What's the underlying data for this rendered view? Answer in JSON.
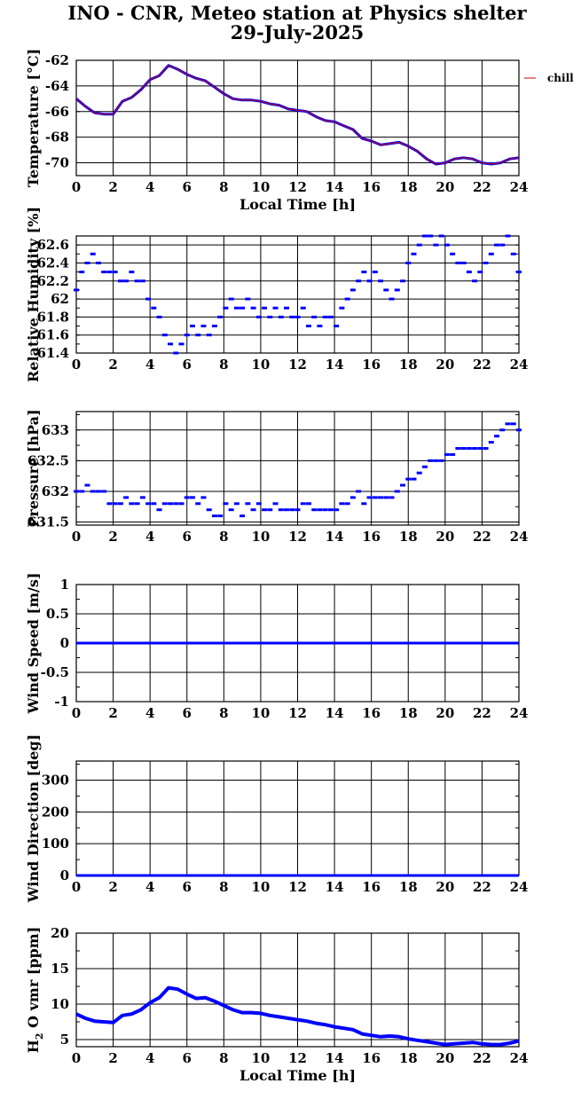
{
  "title": {
    "line1": "INO - CNR, Meteo station at Physics shelter",
    "line2": "29-July-2025"
  },
  "colors": {
    "series": "#0000ff",
    "temperature_overlay": "#cc0000",
    "grid": "#000000"
  },
  "chart_data": [
    {
      "type": "line",
      "ylabel": "Temperature [°C]",
      "xlabel": "Local Time [h]",
      "xlim": [
        0,
        24
      ],
      "ylim": [
        -71,
        -62
      ],
      "xticks": [
        "0",
        "2",
        "4",
        "6",
        "8",
        "10",
        "12",
        "14",
        "16",
        "18",
        "20",
        "22",
        "24"
      ],
      "yticks": [
        "-62",
        "-64",
        "-66",
        "-68",
        "-70"
      ],
      "legend": "chill",
      "series": [
        {
          "x": [
            0,
            0.5,
            1,
            1.5,
            2,
            2.5,
            3,
            3.5,
            4,
            4.5,
            5,
            5.5,
            6,
            6.5,
            7,
            7.5,
            8,
            8.5,
            9,
            9.5,
            10,
            10.5,
            11,
            11.5,
            12,
            12.5,
            13,
            13.5,
            14,
            14.5,
            15,
            15.5,
            16,
            16.5,
            17,
            17.5,
            18,
            18.5,
            19,
            19.5,
            20,
            20.5,
            21,
            21.5,
            22,
            22.5,
            23,
            23.5,
            24
          ],
          "y": [
            -65.0,
            -65.6,
            -66.1,
            -66.2,
            -66.2,
            -65.2,
            -64.9,
            -64.3,
            -63.5,
            -63.2,
            -62.4,
            -62.7,
            -63.1,
            -63.4,
            -63.6,
            -64.1,
            -64.6,
            -65.0,
            -65.1,
            -65.1,
            -65.2,
            -65.4,
            -65.5,
            -65.8,
            -65.9,
            -66.0,
            -66.4,
            -66.7,
            -66.8,
            -67.1,
            -67.4,
            -68.1,
            -68.3,
            -68.6,
            -68.5,
            -68.4,
            -68.7,
            -69.1,
            -69.7,
            -70.1,
            -70.0,
            -69.7,
            -69.6,
            -69.7,
            -70.0,
            -70.1,
            -70.0,
            -69.7,
            -69.6
          ]
        }
      ]
    },
    {
      "type": "scatter",
      "ylabel": "Relative Humidity [%]",
      "xlim": [
        0,
        24
      ],
      "ylim": [
        61.4,
        62.7
      ],
      "xticks": [
        "0",
        "2",
        "4",
        "6",
        "8",
        "10",
        "12",
        "14",
        "16",
        "18",
        "20",
        "22",
        "24"
      ],
      "yticks": [
        "61.4",
        "61.6",
        "61.8",
        "62",
        "62.2",
        "62.4",
        "62.6"
      ],
      "series": [
        {
          "x": [
            0,
            0.3,
            0.6,
            0.9,
            1.2,
            1.5,
            1.8,
            2.1,
            2.4,
            2.7,
            3.0,
            3.3,
            3.6,
            3.9,
            4.2,
            4.5,
            4.8,
            5.1,
            5.4,
            5.7,
            6.0,
            6.3,
            6.6,
            6.9,
            7.2,
            7.5,
            7.8,
            8.1,
            8.4,
            8.7,
            9.0,
            9.3,
            9.6,
            9.9,
            10.2,
            10.5,
            10.8,
            11.1,
            11.4,
            11.7,
            12.0,
            12.3,
            12.6,
            12.9,
            13.2,
            13.5,
            13.8,
            14.1,
            14.4,
            14.7,
            15.0,
            15.3,
            15.6,
            15.9,
            16.2,
            16.5,
            16.8,
            17.1,
            17.4,
            17.7,
            18.0,
            18.3,
            18.6,
            18.9,
            19.2,
            19.5,
            19.8,
            20.1,
            20.4,
            20.7,
            21.0,
            21.3,
            21.6,
            21.9,
            22.2,
            22.5,
            22.8,
            23.1,
            23.4,
            23.7,
            24.0
          ],
          "y": [
            62.1,
            62.3,
            62.4,
            62.5,
            62.4,
            62.3,
            62.3,
            62.3,
            62.2,
            62.2,
            62.3,
            62.2,
            62.2,
            62.0,
            61.9,
            61.8,
            61.6,
            61.5,
            61.4,
            61.5,
            61.6,
            61.7,
            61.6,
            61.7,
            61.6,
            61.7,
            61.8,
            61.9,
            62.0,
            61.9,
            61.9,
            62.0,
            61.9,
            61.8,
            61.9,
            61.8,
            61.9,
            61.8,
            61.9,
            61.8,
            61.8,
            61.9,
            61.7,
            61.8,
            61.7,
            61.8,
            61.8,
            61.7,
            61.9,
            62.0,
            62.1,
            62.2,
            62.3,
            62.2,
            62.3,
            62.2,
            62.1,
            62.0,
            62.1,
            62.2,
            62.4,
            62.5,
            62.6,
            62.7,
            62.7,
            62.6,
            62.7,
            62.6,
            62.5,
            62.4,
            62.4,
            62.3,
            62.2,
            62.3,
            62.4,
            62.5,
            62.6,
            62.6,
            62.7,
            62.5,
            62.3
          ]
        }
      ]
    },
    {
      "type": "scatter",
      "ylabel": "Pressure [hPa]",
      "xlim": [
        0,
        24
      ],
      "ylim": [
        631.45,
        633.3
      ],
      "xticks": [
        "0",
        "2",
        "4",
        "6",
        "8",
        "10",
        "12",
        "14",
        "16",
        "18",
        "20",
        "22",
        "24"
      ],
      "yticks": [
        "631.5",
        "632",
        "632.5",
        "633"
      ],
      "series": [
        {
          "x": [
            0,
            0.3,
            0.6,
            0.9,
            1.2,
            1.5,
            1.8,
            2.1,
            2.4,
            2.7,
            3.0,
            3.3,
            3.6,
            3.9,
            4.2,
            4.5,
            4.8,
            5.1,
            5.4,
            5.7,
            6.0,
            6.3,
            6.6,
            6.9,
            7.2,
            7.5,
            7.8,
            8.1,
            8.4,
            8.7,
            9.0,
            9.3,
            9.6,
            9.9,
            10.2,
            10.5,
            10.8,
            11.1,
            11.4,
            11.7,
            12.0,
            12.3,
            12.6,
            12.9,
            13.2,
            13.5,
            13.8,
            14.1,
            14.4,
            14.7,
            15.0,
            15.3,
            15.6,
            15.9,
            16.2,
            16.5,
            16.8,
            17.1,
            17.4,
            17.7,
            18.0,
            18.3,
            18.6,
            18.9,
            19.2,
            19.5,
            19.8,
            20.1,
            20.4,
            20.7,
            21.0,
            21.3,
            21.6,
            21.9,
            22.2,
            22.5,
            22.8,
            23.1,
            23.4,
            23.7,
            24.0
          ],
          "y": [
            632.0,
            632.0,
            632.1,
            632.0,
            632.0,
            632.0,
            631.8,
            631.8,
            631.8,
            631.9,
            631.8,
            631.8,
            631.9,
            631.8,
            631.8,
            631.7,
            631.8,
            631.8,
            631.8,
            631.8,
            631.9,
            631.9,
            631.8,
            631.9,
            631.7,
            631.6,
            631.6,
            631.8,
            631.7,
            631.8,
            631.6,
            631.8,
            631.7,
            631.8,
            631.7,
            631.7,
            631.8,
            631.7,
            631.7,
            631.7,
            631.7,
            631.8,
            631.8,
            631.7,
            631.7,
            631.7,
            631.7,
            631.7,
            631.8,
            631.8,
            631.9,
            632.0,
            631.8,
            631.9,
            631.9,
            631.9,
            631.9,
            631.9,
            632.0,
            632.1,
            632.2,
            632.2,
            632.3,
            632.4,
            632.5,
            632.5,
            632.5,
            632.6,
            632.6,
            632.7,
            632.7,
            632.7,
            632.7,
            632.7,
            632.7,
            632.8,
            632.9,
            633.0,
            633.1,
            633.1,
            633.0
          ]
        }
      ]
    },
    {
      "type": "line",
      "ylabel": "Wind Speed [m/s]",
      "xlim": [
        0,
        24
      ],
      "ylim": [
        -1,
        1
      ],
      "xticks": [
        "0",
        "2",
        "4",
        "6",
        "8",
        "10",
        "12",
        "14",
        "16",
        "18",
        "20",
        "22",
        "24"
      ],
      "yticks": [
        "-1",
        "-0.5",
        "0",
        "0.5",
        "1"
      ],
      "series": [
        {
          "x": [
            0,
            24
          ],
          "y": [
            0,
            0
          ]
        }
      ]
    },
    {
      "type": "line",
      "ylabel": "Wind Direction [deg]",
      "xlim": [
        0,
        24
      ],
      "ylim": [
        0,
        360
      ],
      "xticks": [
        "0",
        "2",
        "4",
        "6",
        "8",
        "10",
        "12",
        "14",
        "16",
        "18",
        "20",
        "22",
        "24"
      ],
      "yticks": [
        "0",
        "100",
        "200",
        "300"
      ],
      "series": [
        {
          "x": [
            0,
            24
          ],
          "y": [
            0,
            0
          ]
        }
      ]
    },
    {
      "type": "line",
      "ylabel_main": "H",
      "ylabel_sub": "2",
      "ylabel_rest": "O vmr [ppm]",
      "xlabel": "Local Time [h]",
      "xlim": [
        0,
        24
      ],
      "ylim": [
        4,
        20
      ],
      "xticks": [
        "0",
        "2",
        "4",
        "6",
        "8",
        "10",
        "12",
        "14",
        "16",
        "18",
        "20",
        "22",
        "24"
      ],
      "yticks": [
        "5",
        "10",
        "15",
        "20"
      ],
      "series": [
        {
          "x": [
            0,
            0.5,
            1,
            1.5,
            2,
            2.5,
            3,
            3.5,
            4,
            4.5,
            5,
            5.5,
            6,
            6.5,
            7,
            7.5,
            8,
            8.5,
            9,
            9.5,
            10,
            10.5,
            11,
            11.5,
            12,
            12.5,
            13,
            13.5,
            14,
            14.5,
            15,
            15.5,
            16,
            16.5,
            17,
            17.5,
            18,
            18.5,
            19,
            19.5,
            20,
            20.5,
            21,
            21.5,
            22,
            22.5,
            23,
            23.5,
            24
          ],
          "y": [
            8.6,
            8.0,
            7.6,
            7.5,
            7.4,
            8.4,
            8.6,
            9.2,
            10.2,
            10.9,
            12.3,
            12.1,
            11.4,
            10.8,
            10.9,
            10.4,
            9.8,
            9.2,
            8.8,
            8.8,
            8.7,
            8.4,
            8.2,
            8.0,
            7.8,
            7.6,
            7.3,
            7.1,
            6.8,
            6.6,
            6.4,
            5.8,
            5.6,
            5.4,
            5.5,
            5.4,
            5.1,
            4.9,
            4.7,
            4.5,
            4.3,
            4.4,
            4.5,
            4.6,
            4.4,
            4.3,
            4.3,
            4.5,
            4.8
          ]
        }
      ]
    }
  ]
}
